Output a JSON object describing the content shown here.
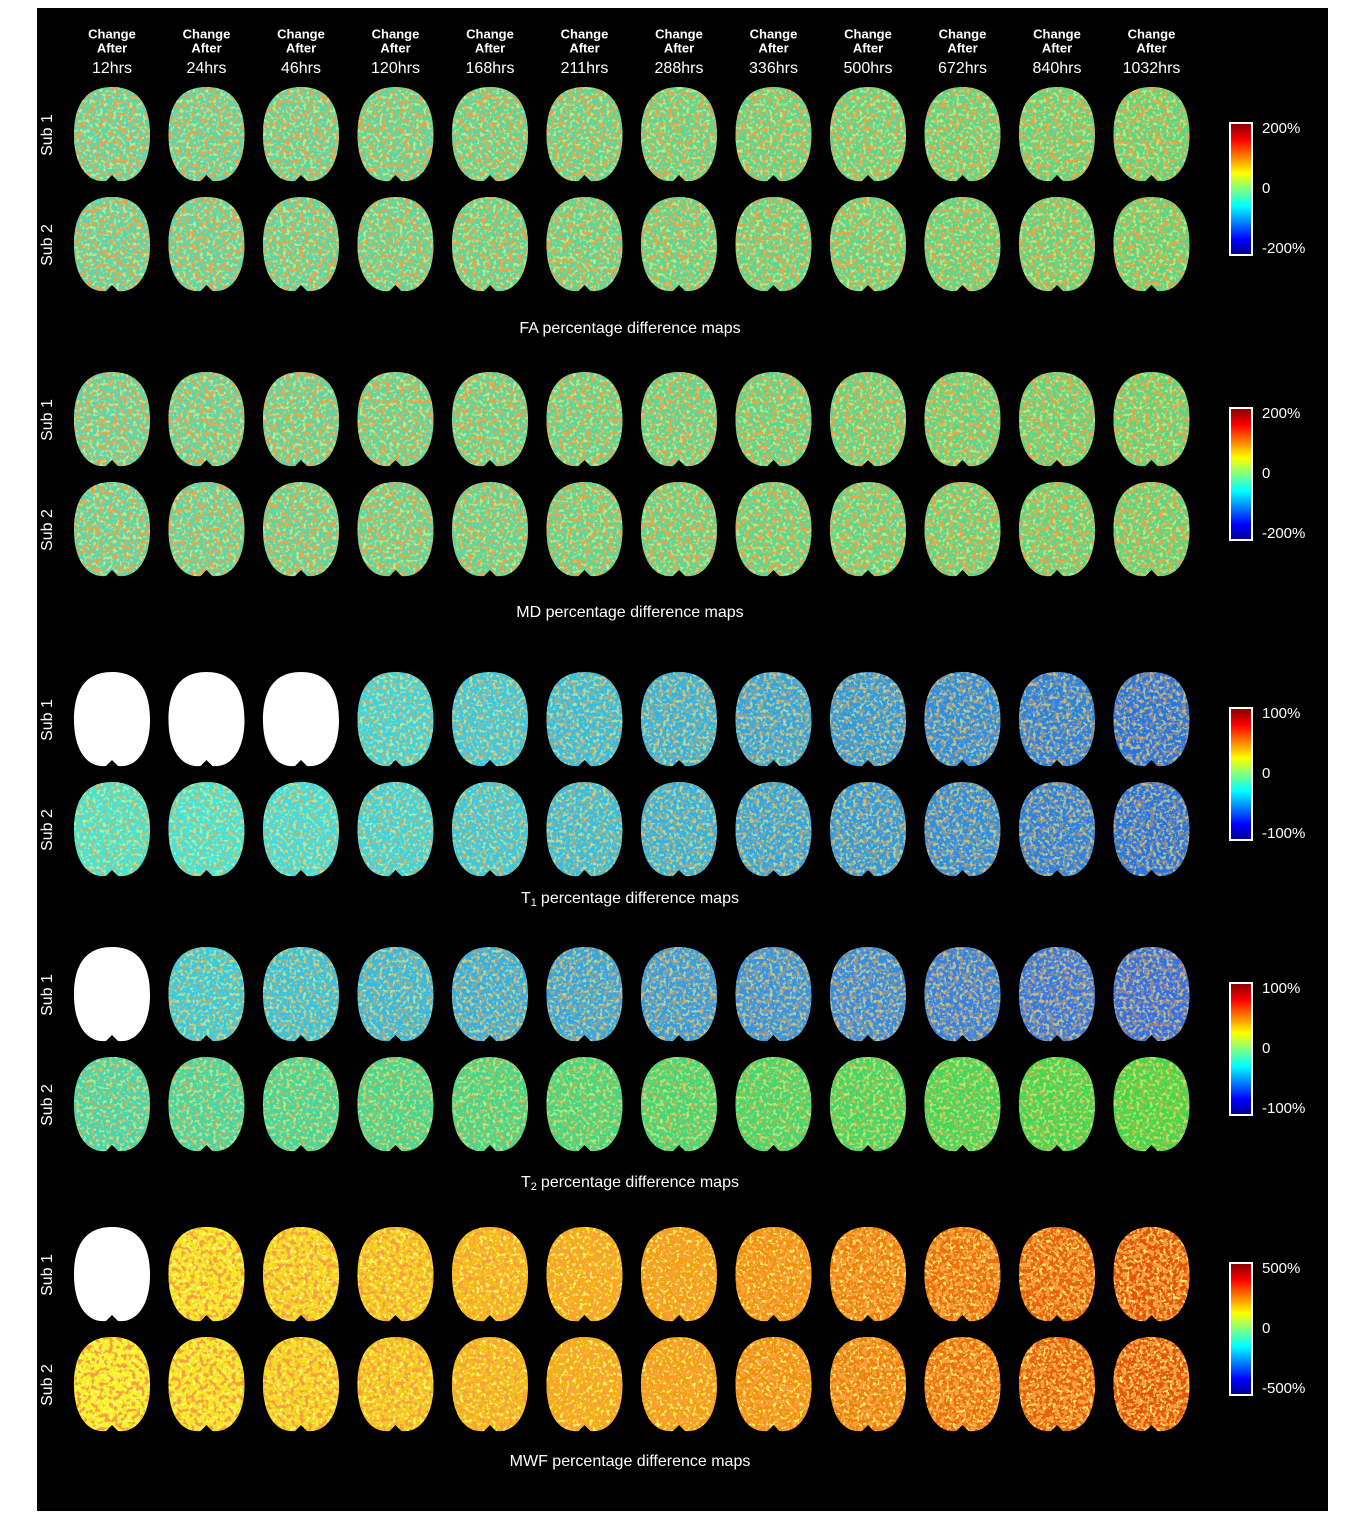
{
  "columns": [
    {
      "line1": "Change",
      "line2": "After",
      "time": "12hrs"
    },
    {
      "line1": "Change",
      "line2": "After",
      "time": "24hrs"
    },
    {
      "line1": "Change",
      "line2": "After",
      "time": "46hrs"
    },
    {
      "line1": "Change",
      "line2": "After",
      "time": "120hrs"
    },
    {
      "line1": "Change",
      "line2": "After",
      "time": "168hrs"
    },
    {
      "line1": "Change",
      "line2": "After",
      "time": "211hrs"
    },
    {
      "line1": "Change",
      "line2": "After",
      "time": "288hrs"
    },
    {
      "line1": "Change",
      "line2": "After",
      "time": "336hrs"
    },
    {
      "line1": "Change",
      "line2": "After",
      "time": "500hrs"
    },
    {
      "line1": "Change",
      "line2": "After",
      "time": "672hrs"
    },
    {
      "line1": "Change",
      "line2": "After",
      "time": "840hrs"
    },
    {
      "line1": "Change",
      "line2": "After",
      "time": "1032hrs"
    }
  ],
  "panels": [
    {
      "rows": [
        "Sub 1",
        "Sub 2"
      ],
      "caption": {
        "text": "FA percentage difference maps"
      },
      "colorbar": [
        "200%",
        "0",
        "-200%"
      ]
    },
    {
      "rows": [
        "Sub 1",
        "Sub 2"
      ],
      "caption": {
        "text": "MD percentage difference maps"
      },
      "colorbar": [
        "200%",
        "0",
        "-200%"
      ]
    },
    {
      "rows": [
        "Sub 1",
        "Sub 2"
      ],
      "caption": {
        "symbol": "T",
        "subscript": "1",
        "text": "percentage difference maps"
      },
      "colorbar": [
        "100%",
        "0",
        "-100%"
      ]
    },
    {
      "rows": [
        "Sub 1",
        "Sub 2"
      ],
      "caption": {
        "symbol": "T",
        "subscript": "2",
        "text": "percentage difference maps"
      },
      "colorbar": [
        "100%",
        "0",
        "-100%"
      ]
    },
    {
      "rows": [
        "Sub 1",
        "Sub 2"
      ],
      "caption": {
        "text": "MWF percentage difference maps"
      },
      "colorbar": [
        "500%",
        "0",
        "-500%"
      ]
    }
  ]
}
